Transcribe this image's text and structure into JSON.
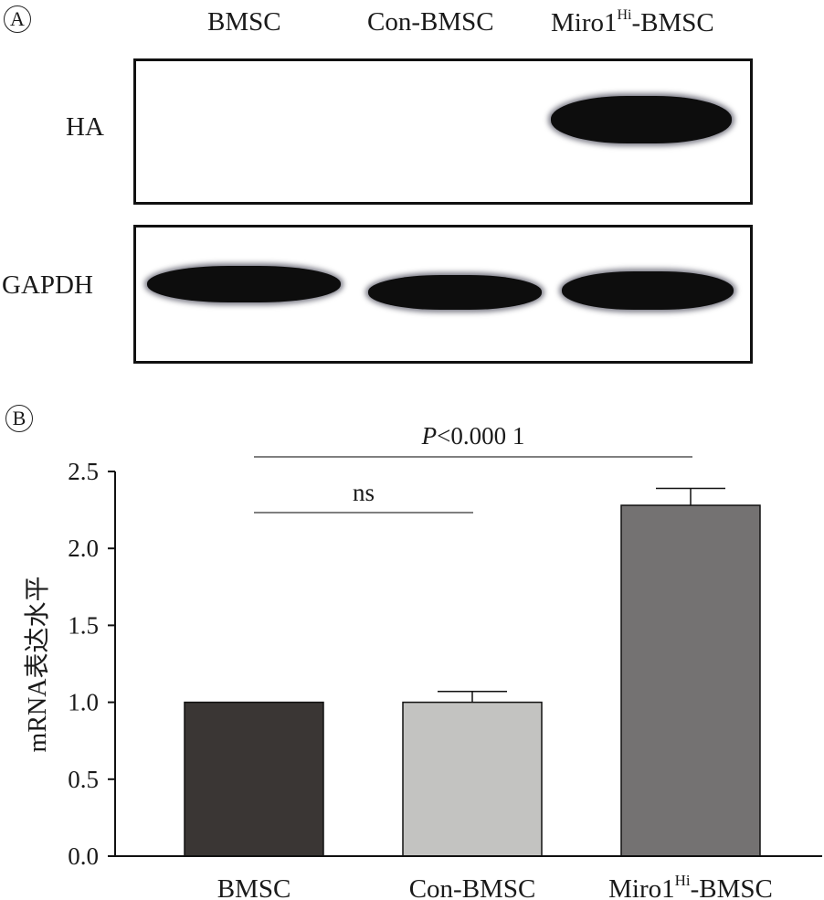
{
  "panel_a": {
    "label": "A",
    "lanes": [
      {
        "name": "BMSC",
        "sup": "",
        "suffix": ""
      },
      {
        "name": "Con-BMSC",
        "sup": "",
        "suffix": ""
      },
      {
        "name": "Miro1",
        "sup": "Hi",
        "suffix": "-BMSC"
      }
    ],
    "rows": [
      {
        "label": "HA",
        "band_present": [
          false,
          false,
          true
        ]
      },
      {
        "label": "GAPDH",
        "band_present": [
          true,
          true,
          true
        ]
      }
    ]
  },
  "panel_b": {
    "label": "B"
  },
  "chart_data": {
    "type": "bar",
    "categories": [
      "BMSC",
      "Con-BMSC",
      "Miro1Hi-BMSC"
    ],
    "category_parts": [
      {
        "main": "BMSC",
        "sup": "",
        "suffix": ""
      },
      {
        "main": "Con-BMSC",
        "sup": "",
        "suffix": ""
      },
      {
        "main": "Miro1",
        "sup": "Hi",
        "suffix": "-BMSC"
      }
    ],
    "values": [
      1.0,
      1.0,
      2.28
    ],
    "errors": [
      0.0,
      0.07,
      0.11
    ],
    "bar_colors": [
      "#3a3634",
      "#c3c3c1",
      "#747272"
    ],
    "ylabel": "mRNA表达水平",
    "ylim": [
      0,
      2.5
    ],
    "yticks": [
      "0.0",
      "0.5",
      "1.0",
      "1.5",
      "2.0",
      "2.5"
    ],
    "ytick_values": [
      0,
      0.5,
      1.0,
      1.5,
      2.0,
      2.5
    ],
    "grid": false,
    "significance": [
      {
        "from": 0,
        "to": 1,
        "label": "ns",
        "italic_prefix": ""
      },
      {
        "from": 0,
        "to": 2,
        "label": "<0.000 1",
        "italic_prefix": "P"
      }
    ]
  }
}
